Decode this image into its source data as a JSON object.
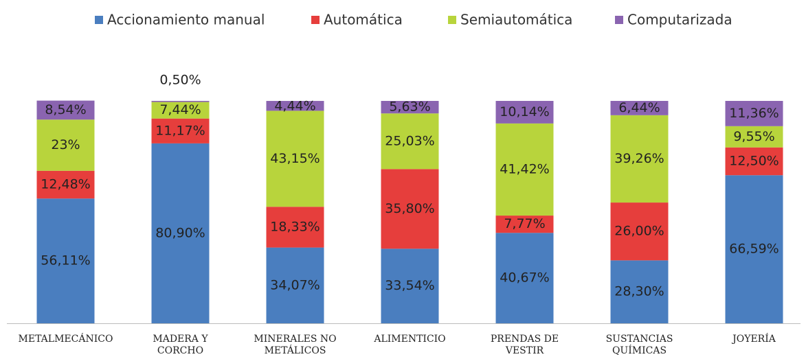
{
  "chart_data": {
    "type": "stacked_bar_percent",
    "categories": [
      "METALMECÁNICO",
      "MADERA Y\nCORCHO",
      "MINERALES NO\nMETÁLICOS",
      "ALIMENTICIO",
      "PRENDAS DE\nVESTIR",
      "SUSTANCIAS\nQUÍMICAS",
      "JOYERÍA"
    ],
    "ylim": [
      0,
      100
    ],
    "legend": "top",
    "series": [
      {
        "name": "Accionamiento manual",
        "color": "#4a7ebf",
        "values": [
          56.11,
          80.9,
          34.07,
          33.54,
          40.67,
          28.3,
          66.59
        ],
        "value_labels": [
          "56,11%",
          "80,90%",
          "34,07%",
          "33,54%",
          "40,67%",
          "28,30%",
          "66,59%"
        ]
      },
      {
        "name": "Automática",
        "color": "#e63e3c",
        "values": [
          12.48,
          11.17,
          18.33,
          35.8,
          7.77,
          26.0,
          12.5
        ],
        "value_labels": [
          "12,48%",
          "11,17%",
          "18,33%",
          "35,80%",
          "7,77%",
          "26,00%",
          "12,50%"
        ]
      },
      {
        "name": "Semiautomática",
        "color": "#b8d43c",
        "values": [
          23,
          7.44,
          43.15,
          25.03,
          41.42,
          39.26,
          9.55
        ],
        "value_labels": [
          "23%",
          "7,44%",
          "43,15%",
          "25,03%",
          "41,42%",
          "39,26%",
          "9,55%"
        ]
      },
      {
        "name": "Computarizada",
        "color": "#8a64b0",
        "values": [
          8.54,
          0.5,
          4.44,
          5.63,
          10.14,
          6.44,
          11.36
        ],
        "value_labels": [
          "8,54%",
          "0,50%",
          "4,44%",
          "5,63%",
          "10,14%",
          "6,44%",
          "11,36%"
        ]
      }
    ]
  }
}
